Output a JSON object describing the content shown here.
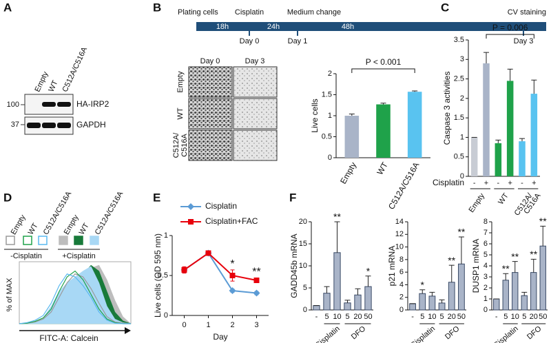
{
  "panel_labels": [
    "A",
    "B",
    "C",
    "D",
    "E",
    "F"
  ],
  "blot": {
    "lanes": [
      "Empty",
      "WT",
      "C512A/C516A"
    ],
    "markers": [
      "100",
      "37"
    ],
    "bands": [
      "HA-IRP2",
      "GAPDH"
    ]
  },
  "timeline": {
    "events": [
      "Plating cells",
      "Cisplatin",
      "Medium change",
      "CV staining"
    ],
    "durations": [
      "18h",
      "24h",
      "48h"
    ],
    "days": [
      "Day 0",
      "Day 1",
      "Day 3"
    ]
  },
  "images": {
    "columns": [
      "Day 0",
      "Day 3"
    ],
    "rows": [
      [
        "Empty"
      ],
      [
        "WT"
      ],
      [
        "C512A/",
        "C516A"
      ]
    ]
  },
  "chart_data": [
    {
      "type": "bar",
      "ylabel": "Live cells",
      "categories": [
        "Empty",
        "WT",
        "C512A/C516A"
      ],
      "values": [
        1.0,
        1.27,
        1.57
      ],
      "errors": [
        0.04,
        0.03,
        0.02
      ],
      "colors": [
        "#a9b4c8",
        "#1fa24a",
        "#59c3f0"
      ],
      "ylim": [
        0,
        2
      ],
      "yticks": [
        0,
        0.5,
        1,
        1.5,
        2
      ],
      "annotation": "P < 0.001"
    },
    {
      "type": "bar",
      "ylabel": "Caspase 3 activities",
      "row_label": "Cisplatin",
      "categories": [
        "-",
        "+",
        "-",
        "+",
        "-",
        "+"
      ],
      "values": [
        1,
        2.9,
        0.85,
        2.45,
        0.9,
        2.12
      ],
      "errors": [
        0,
        0.28,
        0.08,
        0.3,
        0.07,
        0.35
      ],
      "colors": [
        "#c8ccd4",
        "#a9b4c8",
        "#1fa24a",
        "#1fa24a",
        "#59c3f0",
        "#59c3f0"
      ],
      "group_labels": [
        [
          "Empty"
        ],
        [
          "WT"
        ],
        [
          "C512A/",
          "C516A"
        ]
      ],
      "ylim": [
        0,
        3.5
      ],
      "yticks": [
        0,
        0.5,
        1,
        1.5,
        2,
        2.5,
        3,
        3.5
      ],
      "annotation": "P = 0.006"
    },
    {
      "type": "density",
      "ylabel": "% of MAX",
      "xlabel": "FITC-A: Calcein",
      "x": [
        0,
        1,
        2,
        3,
        4,
        5,
        6,
        7,
        8,
        9,
        10,
        11,
        12,
        13,
        14
      ],
      "xlim": [
        0,
        14
      ],
      "ylim": [
        0,
        100
      ],
      "group_labels": [
        "-Cisplatin",
        "+Cisplatin"
      ],
      "series": [
        {
          "name": "Empty",
          "color": "#9a9a9a",
          "filled": false,
          "values": [
            0,
            1,
            3,
            8,
            20,
            45,
            70,
            85,
            80,
            60,
            35,
            12,
            3,
            1,
            0
          ]
        },
        {
          "name": "WT",
          "color": "#1fa24a",
          "filled": false,
          "values": [
            0,
            1,
            4,
            10,
            25,
            55,
            80,
            90,
            75,
            50,
            25,
            8,
            2,
            0,
            0
          ]
        },
        {
          "name": "C512A/C516A",
          "color": "#59b8f0",
          "filled": false,
          "values": [
            0,
            2,
            6,
            14,
            35,
            65,
            85,
            80,
            65,
            45,
            20,
            6,
            1,
            0,
            0
          ]
        },
        {
          "name": "Empty",
          "color": "#bdbdbd",
          "filled": true,
          "values": [
            0,
            0,
            1,
            2,
            5,
            12,
            25,
            45,
            70,
            95,
            100,
            75,
            40,
            12,
            0
          ]
        },
        {
          "name": "WT",
          "color": "#187a3a",
          "filled": true,
          "values": [
            0,
            0,
            1,
            2,
            5,
            15,
            35,
            60,
            85,
            100,
            90,
            55,
            20,
            5,
            0
          ]
        },
        {
          "name": "C512A/C516A",
          "color": "#a8d8f5",
          "filled": true,
          "values": [
            0,
            1,
            3,
            10,
            30,
            55,
            70,
            80,
            90,
            98,
            70,
            30,
            8,
            2,
            0
          ]
        }
      ]
    },
    {
      "type": "line",
      "xlabel": "Day",
      "ylabel": "Live cells (OD 595 nm)",
      "x": [
        0,
        1,
        2,
        3
      ],
      "xlim": [
        -0.5,
        3.5
      ],
      "xticks": [
        0,
        1,
        2,
        3
      ],
      "ylim": [
        0,
        1
      ],
      "yticks": [
        0,
        0.5,
        1
      ],
      "series": [
        {
          "name": "Cisplatin",
          "color": "#5b9bd5",
          "marker": "diamond",
          "values": [
            0.57,
            0.78,
            0.31,
            0.28
          ],
          "errors": [
            0.03,
            0.03,
            0.02,
            0.02
          ]
        },
        {
          "name": "Cisplatin+FAC",
          "color": "#e8000b",
          "marker": "square",
          "values": [
            0.57,
            0.78,
            0.5,
            0.44
          ],
          "errors": [
            0.04,
            0.03,
            0.07,
            0.03
          ]
        }
      ],
      "significance": [
        null,
        null,
        "*",
        "**"
      ]
    },
    {
      "type": "bar",
      "ylabel": "GADD45b mRNA",
      "categories": [
        "-",
        "5",
        "10",
        "5",
        "20",
        "50"
      ],
      "group_labels": [
        "Cisplatin",
        "DFO"
      ],
      "values": [
        1,
        3.8,
        13,
        1.6,
        3.4,
        5.3
      ],
      "errors": [
        0,
        1.5,
        7,
        0.6,
        1.4,
        2.4
      ],
      "significance": [
        null,
        null,
        "**",
        null,
        null,
        "*"
      ],
      "color": "#a9b4c8",
      "ylim": [
        0,
        20
      ],
      "yticks": [
        0,
        5,
        10,
        15,
        20
      ]
    },
    {
      "type": "bar",
      "ylabel": "p21 mRNA",
      "categories": [
        "-",
        "5",
        "10",
        "5",
        "20",
        "50"
      ],
      "group_labels": [
        "Cisplatin",
        "DFO"
      ],
      "values": [
        1,
        2.6,
        2.2,
        1.1,
        4.4,
        7.3
      ],
      "errors": [
        0,
        0.6,
        0.6,
        0.5,
        2.7,
        4.3
      ],
      "significance": [
        null,
        "*",
        null,
        null,
        "**",
        "**"
      ],
      "color": "#a9b4c8",
      "ylim": [
        0,
        14
      ],
      "yticks": [
        0,
        2,
        4,
        6,
        8,
        10,
        12,
        14
      ]
    },
    {
      "type": "bar",
      "ylabel": "DUSP1 mRNA",
      "categories": [
        "-",
        "5",
        "10",
        "5",
        "20",
        "50"
      ],
      "group_labels": [
        "Cisplatin",
        "DFO"
      ],
      "values": [
        1,
        2.7,
        3.4,
        1.3,
        3.4,
        5.8
      ],
      "errors": [
        0,
        0.6,
        1.0,
        0.3,
        1.2,
        1.8
      ],
      "significance": [
        null,
        "**",
        "**",
        null,
        "**",
        "**"
      ],
      "color": "#a9b4c8",
      "ylim": [
        0,
        8
      ],
      "yticks": [
        0,
        1,
        2,
        3,
        4,
        5,
        6,
        7,
        8
      ]
    }
  ]
}
